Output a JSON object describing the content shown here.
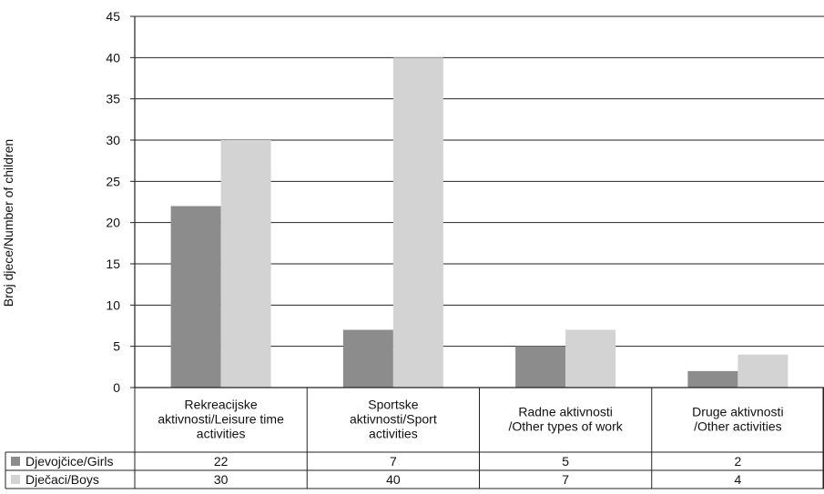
{
  "chart_data": {
    "type": "bar",
    "ylabel": "Broj djece/Number of children",
    "ylim": [
      0,
      45
    ],
    "yticks": [
      0,
      5,
      10,
      15,
      20,
      25,
      30,
      35,
      40,
      45
    ],
    "grid": true,
    "categories": [
      [
        "Rekreacijske",
        "aktivnosti/Leisure time",
        "activities"
      ],
      [
        "Sportske",
        "aktivnosti/Sport",
        "activities"
      ],
      [
        "Radne aktivnosti",
        "/Other types of work"
      ],
      [
        "Druge aktivnosti",
        "/Other activities"
      ]
    ],
    "series": [
      {
        "name": "Djevojčice/Girls",
        "color": "#8c8c8c",
        "values": [
          22,
          7,
          5,
          2
        ]
      },
      {
        "name": "Dječaci/Boys",
        "color": "#d3d3d3",
        "values": [
          30,
          40,
          7,
          4
        ]
      }
    ],
    "legend": "data-table-left"
  }
}
